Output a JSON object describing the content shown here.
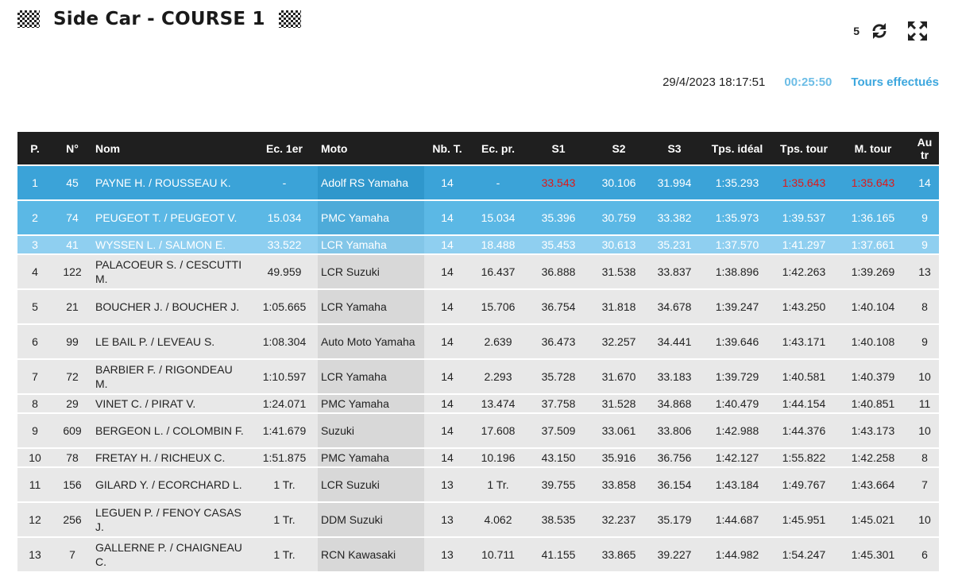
{
  "header": {
    "title": "Side Car - COURSE 1",
    "counter": "5"
  },
  "info": {
    "datetime": "29/4/2023 18:17:51",
    "elapsed": "00:25:50",
    "tours_link": "Tours effectués"
  },
  "columns": [
    "P.",
    "N°",
    "Nom",
    "Ec. 1er",
    "Moto",
    "Nb. T.",
    "Ec. pr.",
    "S1",
    "S2",
    "S3",
    "Tps. idéal",
    "Tps. tour",
    "M. tour",
    "Au tr"
  ],
  "rows": [
    {
      "p": "1",
      "num": "45",
      "nom": "PAYNE H. / ROUSSEAU K.",
      "ec1": "-",
      "moto": "Adolf RS Yamaha",
      "nb": "14",
      "ecpr": "-",
      "s1": "33.543",
      "s2": "30.106",
      "s3": "31.994",
      "ideal": "1:35.293",
      "tour": "1:35.643",
      "mtour": "1:35.643",
      "au": "14"
    },
    {
      "p": "2",
      "num": "74",
      "nom": "PEUGEOT T. / PEUGEOT V.",
      "ec1": "15.034",
      "moto": "PMC Yamaha",
      "nb": "14",
      "ecpr": "15.034",
      "s1": "35.396",
      "s2": "30.759",
      "s3": "33.382",
      "ideal": "1:35.973",
      "tour": "1:39.537",
      "mtour": "1:36.165",
      "au": "9"
    },
    {
      "p": "3",
      "num": "41",
      "nom": "WYSSEN L. / SALMON E.",
      "ec1": "33.522",
      "moto": "LCR Yamaha",
      "nb": "14",
      "ecpr": "18.488",
      "s1": "35.453",
      "s2": "30.613",
      "s3": "35.231",
      "ideal": "1:37.570",
      "tour": "1:41.297",
      "mtour": "1:37.661",
      "au": "9"
    },
    {
      "p": "4",
      "num": "122",
      "nom": "PALACOEUR S. / CESCUTTI M.",
      "ec1": "49.959",
      "moto": "LCR Suzuki",
      "nb": "14",
      "ecpr": "16.437",
      "s1": "36.888",
      "s2": "31.538",
      "s3": "33.837",
      "ideal": "1:38.896",
      "tour": "1:42.263",
      "mtour": "1:39.269",
      "au": "13"
    },
    {
      "p": "5",
      "num": "21",
      "nom": "BOUCHER J. / BOUCHER J.",
      "ec1": "1:05.665",
      "moto": "LCR Yamaha",
      "nb": "14",
      "ecpr": "15.706",
      "s1": "36.754",
      "s2": "31.818",
      "s3": "34.678",
      "ideal": "1:39.247",
      "tour": "1:43.250",
      "mtour": "1:40.104",
      "au": "8"
    },
    {
      "p": "6",
      "num": "99",
      "nom": "LE BAIL P. / LEVEAU S.",
      "ec1": "1:08.304",
      "moto": "Auto Moto Yamaha",
      "nb": "14",
      "ecpr": "2.639",
      "s1": "36.473",
      "s2": "32.257",
      "s3": "34.441",
      "ideal": "1:39.646",
      "tour": "1:43.171",
      "mtour": "1:40.108",
      "au": "9"
    },
    {
      "p": "7",
      "num": "72",
      "nom": "BARBIER F. / RIGONDEAU M.",
      "ec1": "1:10.597",
      "moto": "LCR Yamaha",
      "nb": "14",
      "ecpr": "2.293",
      "s1": "35.728",
      "s2": "31.670",
      "s3": "33.183",
      "ideal": "1:39.729",
      "tour": "1:40.581",
      "mtour": "1:40.379",
      "au": "10"
    },
    {
      "p": "8",
      "num": "29",
      "nom": "VINET C. / PIRAT V.",
      "ec1": "1:24.071",
      "moto": "PMC Yamaha",
      "nb": "14",
      "ecpr": "13.474",
      "s1": "37.758",
      "s2": "31.528",
      "s3": "34.868",
      "ideal": "1:40.479",
      "tour": "1:44.154",
      "mtour": "1:40.851",
      "au": "11"
    },
    {
      "p": "9",
      "num": "609",
      "nom": "BERGEON L. / COLOMBIN F.",
      "ec1": "1:41.679",
      "moto": "Suzuki",
      "nb": "14",
      "ecpr": "17.608",
      "s1": "37.509",
      "s2": "33.061",
      "s3": "33.806",
      "ideal": "1:42.988",
      "tour": "1:44.376",
      "mtour": "1:43.173",
      "au": "10"
    },
    {
      "p": "10",
      "num": "78",
      "nom": "FRETAY H. / RICHEUX C.",
      "ec1": "1:51.875",
      "moto": "PMC Yamaha",
      "nb": "14",
      "ecpr": "10.196",
      "s1": "43.150",
      "s2": "35.916",
      "s3": "36.756",
      "ideal": "1:42.127",
      "tour": "1:55.822",
      "mtour": "1:42.258",
      "au": "8"
    },
    {
      "p": "11",
      "num": "156",
      "nom": "GILARD Y. / ECORCHARD L.",
      "ec1": "1 Tr.",
      "moto": "LCR Suzuki",
      "nb": "13",
      "ecpr": "1 Tr.",
      "s1": "39.755",
      "s2": "33.858",
      "s3": "36.154",
      "ideal": "1:43.184",
      "tour": "1:49.767",
      "mtour": "1:43.664",
      "au": "7"
    },
    {
      "p": "12",
      "num": "256",
      "nom": "LEGUEN P. / FENOY CASAS J.",
      "ec1": "1 Tr.",
      "moto": "DDM Suzuki",
      "nb": "13",
      "ecpr": "4.062",
      "s1": "38.535",
      "s2": "32.237",
      "s3": "35.179",
      "ideal": "1:44.687",
      "tour": "1:45.951",
      "mtour": "1:45.021",
      "au": "10"
    },
    {
      "p": "13",
      "num": "7",
      "nom": "GALLERNE P. / CHAIGNEAU C.",
      "ec1": "1 Tr.",
      "moto": "RCN Kawasaki",
      "nb": "13",
      "ecpr": "10.711",
      "s1": "41.155",
      "s2": "33.865",
      "s3": "39.227",
      "ideal": "1:44.982",
      "tour": "1:54.247",
      "mtour": "1:45.301",
      "au": "6"
    }
  ],
  "row_heights": [
    42,
    42,
    22,
    42,
    42,
    42,
    42,
    22,
    42,
    22,
    42,
    42,
    42
  ],
  "best_values": [
    {
      "row": "1",
      "fields": [
        "s1",
        "tour",
        "mtour"
      ]
    }
  ],
  "colors": {
    "header_bg": "#1f1f1f",
    "row_grey": "#e8e8e8",
    "row_first": "#3ba3d8",
    "row_second": "#5bb8e5",
    "row_third": "#8fcff0",
    "best_red": "#e01818",
    "elapsed_blue": "#6cbde6",
    "link_blue": "#3da7de"
  },
  "icons": {
    "flag": "checkered-flag-icon",
    "refresh": "refresh-icon",
    "fullscreen": "fullscreen-icon"
  }
}
